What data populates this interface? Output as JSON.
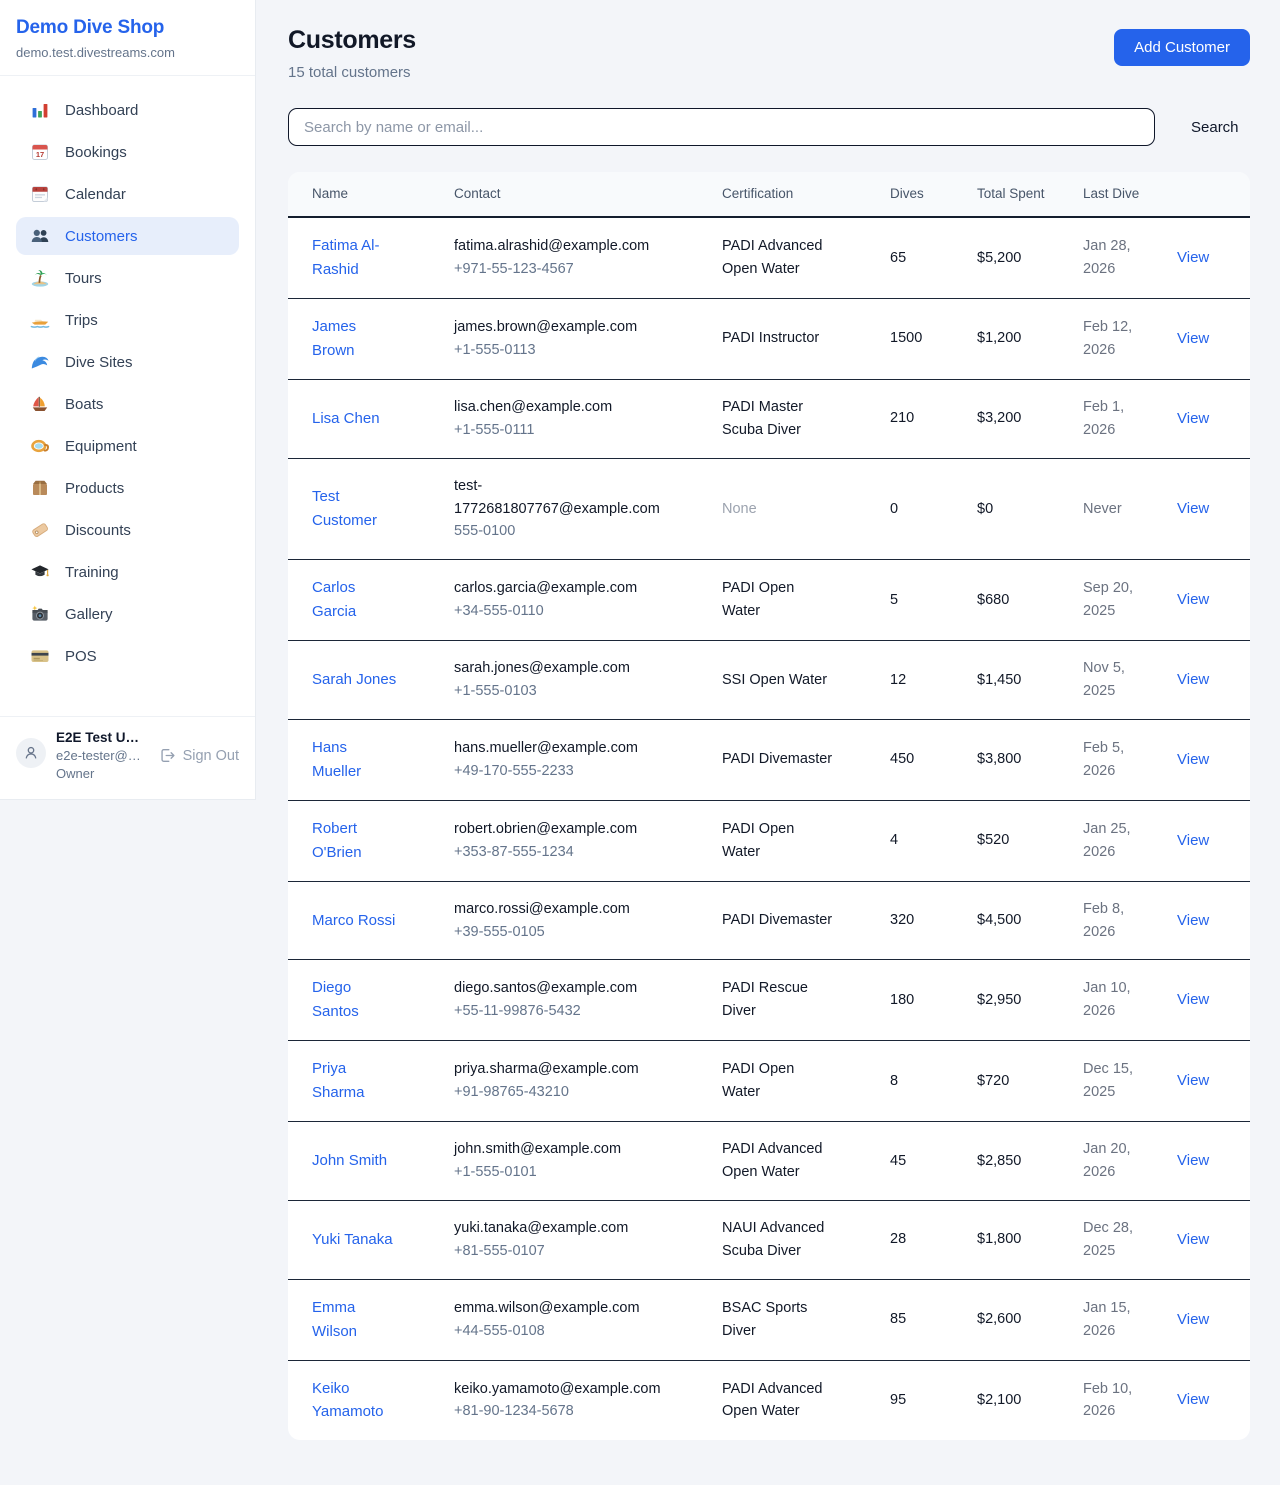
{
  "colors": {
    "accent": "#2563eb",
    "page_background": "#f3f5f9",
    "active_nav_background": "#e7eefb",
    "table_header_background": "#f8fafc",
    "table_border": "#1c2738",
    "muted_text": "#64748b"
  },
  "sidebar": {
    "title": "Demo Dive Shop",
    "domain": "demo.test.divestreams.com",
    "items": [
      {
        "label": "Dashboard",
        "icon": "bar-chart-icon",
        "active": false
      },
      {
        "label": "Bookings",
        "icon": "tear-off-calendar-icon",
        "active": false
      },
      {
        "label": "Calendar",
        "icon": "calendar-pad-icon",
        "active": false
      },
      {
        "label": "Customers",
        "icon": "people-icon",
        "active": true
      },
      {
        "label": "Tours",
        "icon": "desert-island-icon",
        "active": false
      },
      {
        "label": "Trips",
        "icon": "speedboat-icon",
        "active": false
      },
      {
        "label": "Dive Sites",
        "icon": "wave-icon",
        "active": false
      },
      {
        "label": "Boats",
        "icon": "sailboat-icon",
        "active": false
      },
      {
        "label": "Equipment",
        "icon": "diving-mask-icon",
        "active": false
      },
      {
        "label": "Products",
        "icon": "package-icon",
        "active": false
      },
      {
        "label": "Discounts",
        "icon": "tag-icon",
        "active": false
      },
      {
        "label": "Training",
        "icon": "graduation-cap-icon",
        "active": false
      },
      {
        "label": "Gallery",
        "icon": "camera-icon",
        "active": false
      },
      {
        "label": "POS",
        "icon": "credit-card-icon",
        "active": false
      }
    ],
    "user": {
      "name": "E2E Test U…",
      "email": "e2e-tester@…",
      "role": "Owner",
      "sign_out_label": "Sign Out"
    }
  },
  "header": {
    "title": "Customers",
    "subtitle": "15 total customers",
    "add_button": "Add Customer"
  },
  "search": {
    "placeholder": "Search by name or email...",
    "value": "",
    "button_label": "Search"
  },
  "table": {
    "columns": [
      "Name",
      "Contact",
      "Certification",
      "Dives",
      "Total Spent",
      "Last Dive",
      ""
    ],
    "view_label": "View",
    "rows": [
      {
        "name": "Fatima Al-Rashid",
        "email": "fatima.alrashid@example.com",
        "phone": "+971-55-123-4567",
        "certification": "PADI Advanced Open Water",
        "dives": "65",
        "total_spent": "$5,200",
        "last_dive": "Jan 28, 2026"
      },
      {
        "name": "James Brown",
        "email": "james.brown@example.com",
        "phone": "+1-555-0113",
        "certification": "PADI Instructor",
        "dives": "1500",
        "total_spent": "$1,200",
        "last_dive": "Feb 12, 2026"
      },
      {
        "name": "Lisa Chen",
        "email": "lisa.chen@example.com",
        "phone": "+1-555-0111",
        "certification": "PADI Master Scuba Diver",
        "dives": "210",
        "total_spent": "$3,200",
        "last_dive": "Feb 1, 2026"
      },
      {
        "name": "Test Customer",
        "email": "test-1772681807767@example.com",
        "phone": "555-0100",
        "certification": "None",
        "dives": "0",
        "total_spent": "$0",
        "last_dive": "Never"
      },
      {
        "name": "Carlos Garcia",
        "email": "carlos.garcia@example.com",
        "phone": "+34-555-0110",
        "certification": "PADI Open Water",
        "dives": "5",
        "total_spent": "$680",
        "last_dive": "Sep 20, 2025"
      },
      {
        "name": "Sarah Jones",
        "email": "sarah.jones@example.com",
        "phone": "+1-555-0103",
        "certification": "SSI Open Water",
        "dives": "12",
        "total_spent": "$1,450",
        "last_dive": "Nov 5, 2025"
      },
      {
        "name": "Hans Mueller",
        "email": "hans.mueller@example.com",
        "phone": "+49-170-555-2233",
        "certification": "PADI Divemaster",
        "dives": "450",
        "total_spent": "$3,800",
        "last_dive": "Feb 5, 2026"
      },
      {
        "name": "Robert O'Brien",
        "email": "robert.obrien@example.com",
        "phone": "+353-87-555-1234",
        "certification": "PADI Open Water",
        "dives": "4",
        "total_spent": "$520",
        "last_dive": "Jan 25, 2026"
      },
      {
        "name": "Marco Rossi",
        "email": "marco.rossi@example.com",
        "phone": "+39-555-0105",
        "certification": "PADI Divemaster",
        "dives": "320",
        "total_spent": "$4,500",
        "last_dive": "Feb 8, 2026"
      },
      {
        "name": "Diego Santos",
        "email": "diego.santos@example.com",
        "phone": "+55-11-99876-5432",
        "certification": "PADI Rescue Diver",
        "dives": "180",
        "total_spent": "$2,950",
        "last_dive": "Jan 10, 2026"
      },
      {
        "name": "Priya Sharma",
        "email": "priya.sharma@example.com",
        "phone": "+91-98765-43210",
        "certification": "PADI Open Water",
        "dives": "8",
        "total_spent": "$720",
        "last_dive": "Dec 15, 2025"
      },
      {
        "name": "John Smith",
        "email": "john.smith@example.com",
        "phone": "+1-555-0101",
        "certification": "PADI Advanced Open Water",
        "dives": "45",
        "total_spent": "$2,850",
        "last_dive": "Jan 20, 2026"
      },
      {
        "name": "Yuki Tanaka",
        "email": "yuki.tanaka@example.com",
        "phone": "+81-555-0107",
        "certification": "NAUI Advanced Scuba Diver",
        "dives": "28",
        "total_spent": "$1,800",
        "last_dive": "Dec 28, 2025"
      },
      {
        "name": "Emma Wilson",
        "email": "emma.wilson@example.com",
        "phone": "+44-555-0108",
        "certification": "BSAC Sports Diver",
        "dives": "85",
        "total_spent": "$2,600",
        "last_dive": "Jan 15, 2026"
      },
      {
        "name": "Keiko Yamamoto",
        "email": "keiko.yamamoto@example.com",
        "phone": "+81-90-1234-5678",
        "certification": "PADI Advanced Open Water",
        "dives": "95",
        "total_spent": "$2,100",
        "last_dive": "Feb 10, 2026"
      }
    ]
  }
}
